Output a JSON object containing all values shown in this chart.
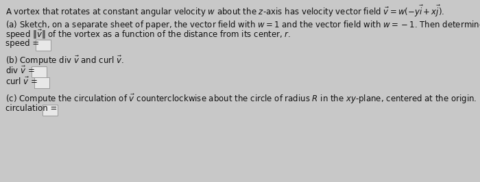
{
  "bg_color": "#c8c8c8",
  "inner_bg": "#d0d0d0",
  "text_color": "#111111",
  "box_color": "#e8e8e8",
  "box_edge": "#999999",
  "line0": "A vortex that rotates at constant angular velocity $w$ about the $z$-axis has velocity vector field $\\vec{v} = w(-y\\vec{i} + x\\vec{j})$.",
  "line_a1": "(a) Sketch, on a separate sheet of paper, the vector field with $w = 1$ and the vector field with $w = -1$. Then determine the",
  "line_a2": "speed $\\|\\vec{v}\\|$ of the vortex as a function of the distance from its center, $r$.",
  "speed_label": "speed = ",
  "line_b": "(b) Compute div $\\vec{v}$ and curl $\\vec{v}$.",
  "div_label": "div $\\vec{v}$ = ",
  "curl_label": "curl $\\vec{v}$ = ",
  "line_c": "(c) Compute the circulation of $\\vec{v}$ counterclockwise about the circle of radius $R$ in the $xy$-plane, centered at the origin.",
  "circ_label": "circulation = ",
  "fs": 8.5
}
